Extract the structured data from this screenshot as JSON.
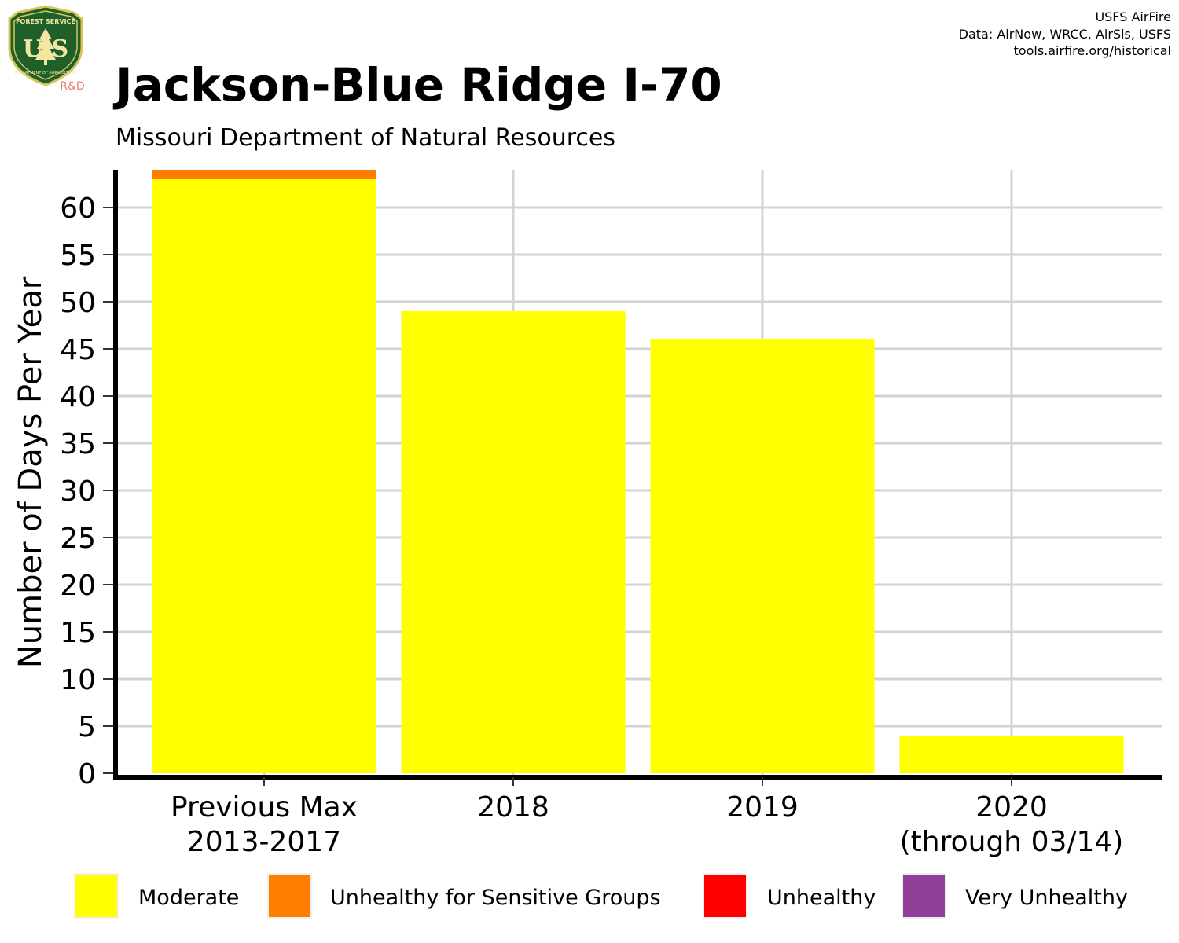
{
  "header": {
    "title": "Jackson-Blue Ridge I-70",
    "subtitle": "Missouri Department of Natural Resources",
    "credits": [
      "USFS AirFire",
      "Data: AirNow, WRCC, AirSis, USFS",
      "tools.airfire.org/historical"
    ]
  },
  "logo": {
    "top_text": "FOREST SERVICE",
    "letters": "U S",
    "bottom_text": "DEPARTMENT OF AGRICULTURE",
    "tag": "R&D"
  },
  "chart_data": {
    "type": "bar",
    "stacked": true,
    "ylabel": "Number of Days Per Year",
    "xlabel": "",
    "ylim": [
      0,
      64
    ],
    "yticks": [
      0,
      5,
      10,
      15,
      20,
      25,
      30,
      35,
      40,
      45,
      50,
      55,
      60
    ],
    "grid": true,
    "categories": [
      [
        "Previous Max",
        "2013-2017"
      ],
      [
        "2018"
      ],
      [
        "2019"
      ],
      [
        "2020",
        "(through 03/14)"
      ]
    ],
    "series": [
      {
        "name": "Moderate",
        "color": "#FFFF00",
        "values": [
          63,
          49,
          46,
          4
        ]
      },
      {
        "name": "Unhealthy for Sensitive Groups",
        "color": "#FF7E00",
        "values": [
          1,
          0,
          0,
          0
        ]
      },
      {
        "name": "Unhealthy",
        "color": "#FF0000",
        "values": [
          0,
          0,
          0,
          0
        ]
      },
      {
        "name": "Very Unhealthy",
        "color": "#8F3F97",
        "values": [
          0,
          0,
          0,
          0
        ]
      }
    ],
    "legend_position": "bottom"
  }
}
